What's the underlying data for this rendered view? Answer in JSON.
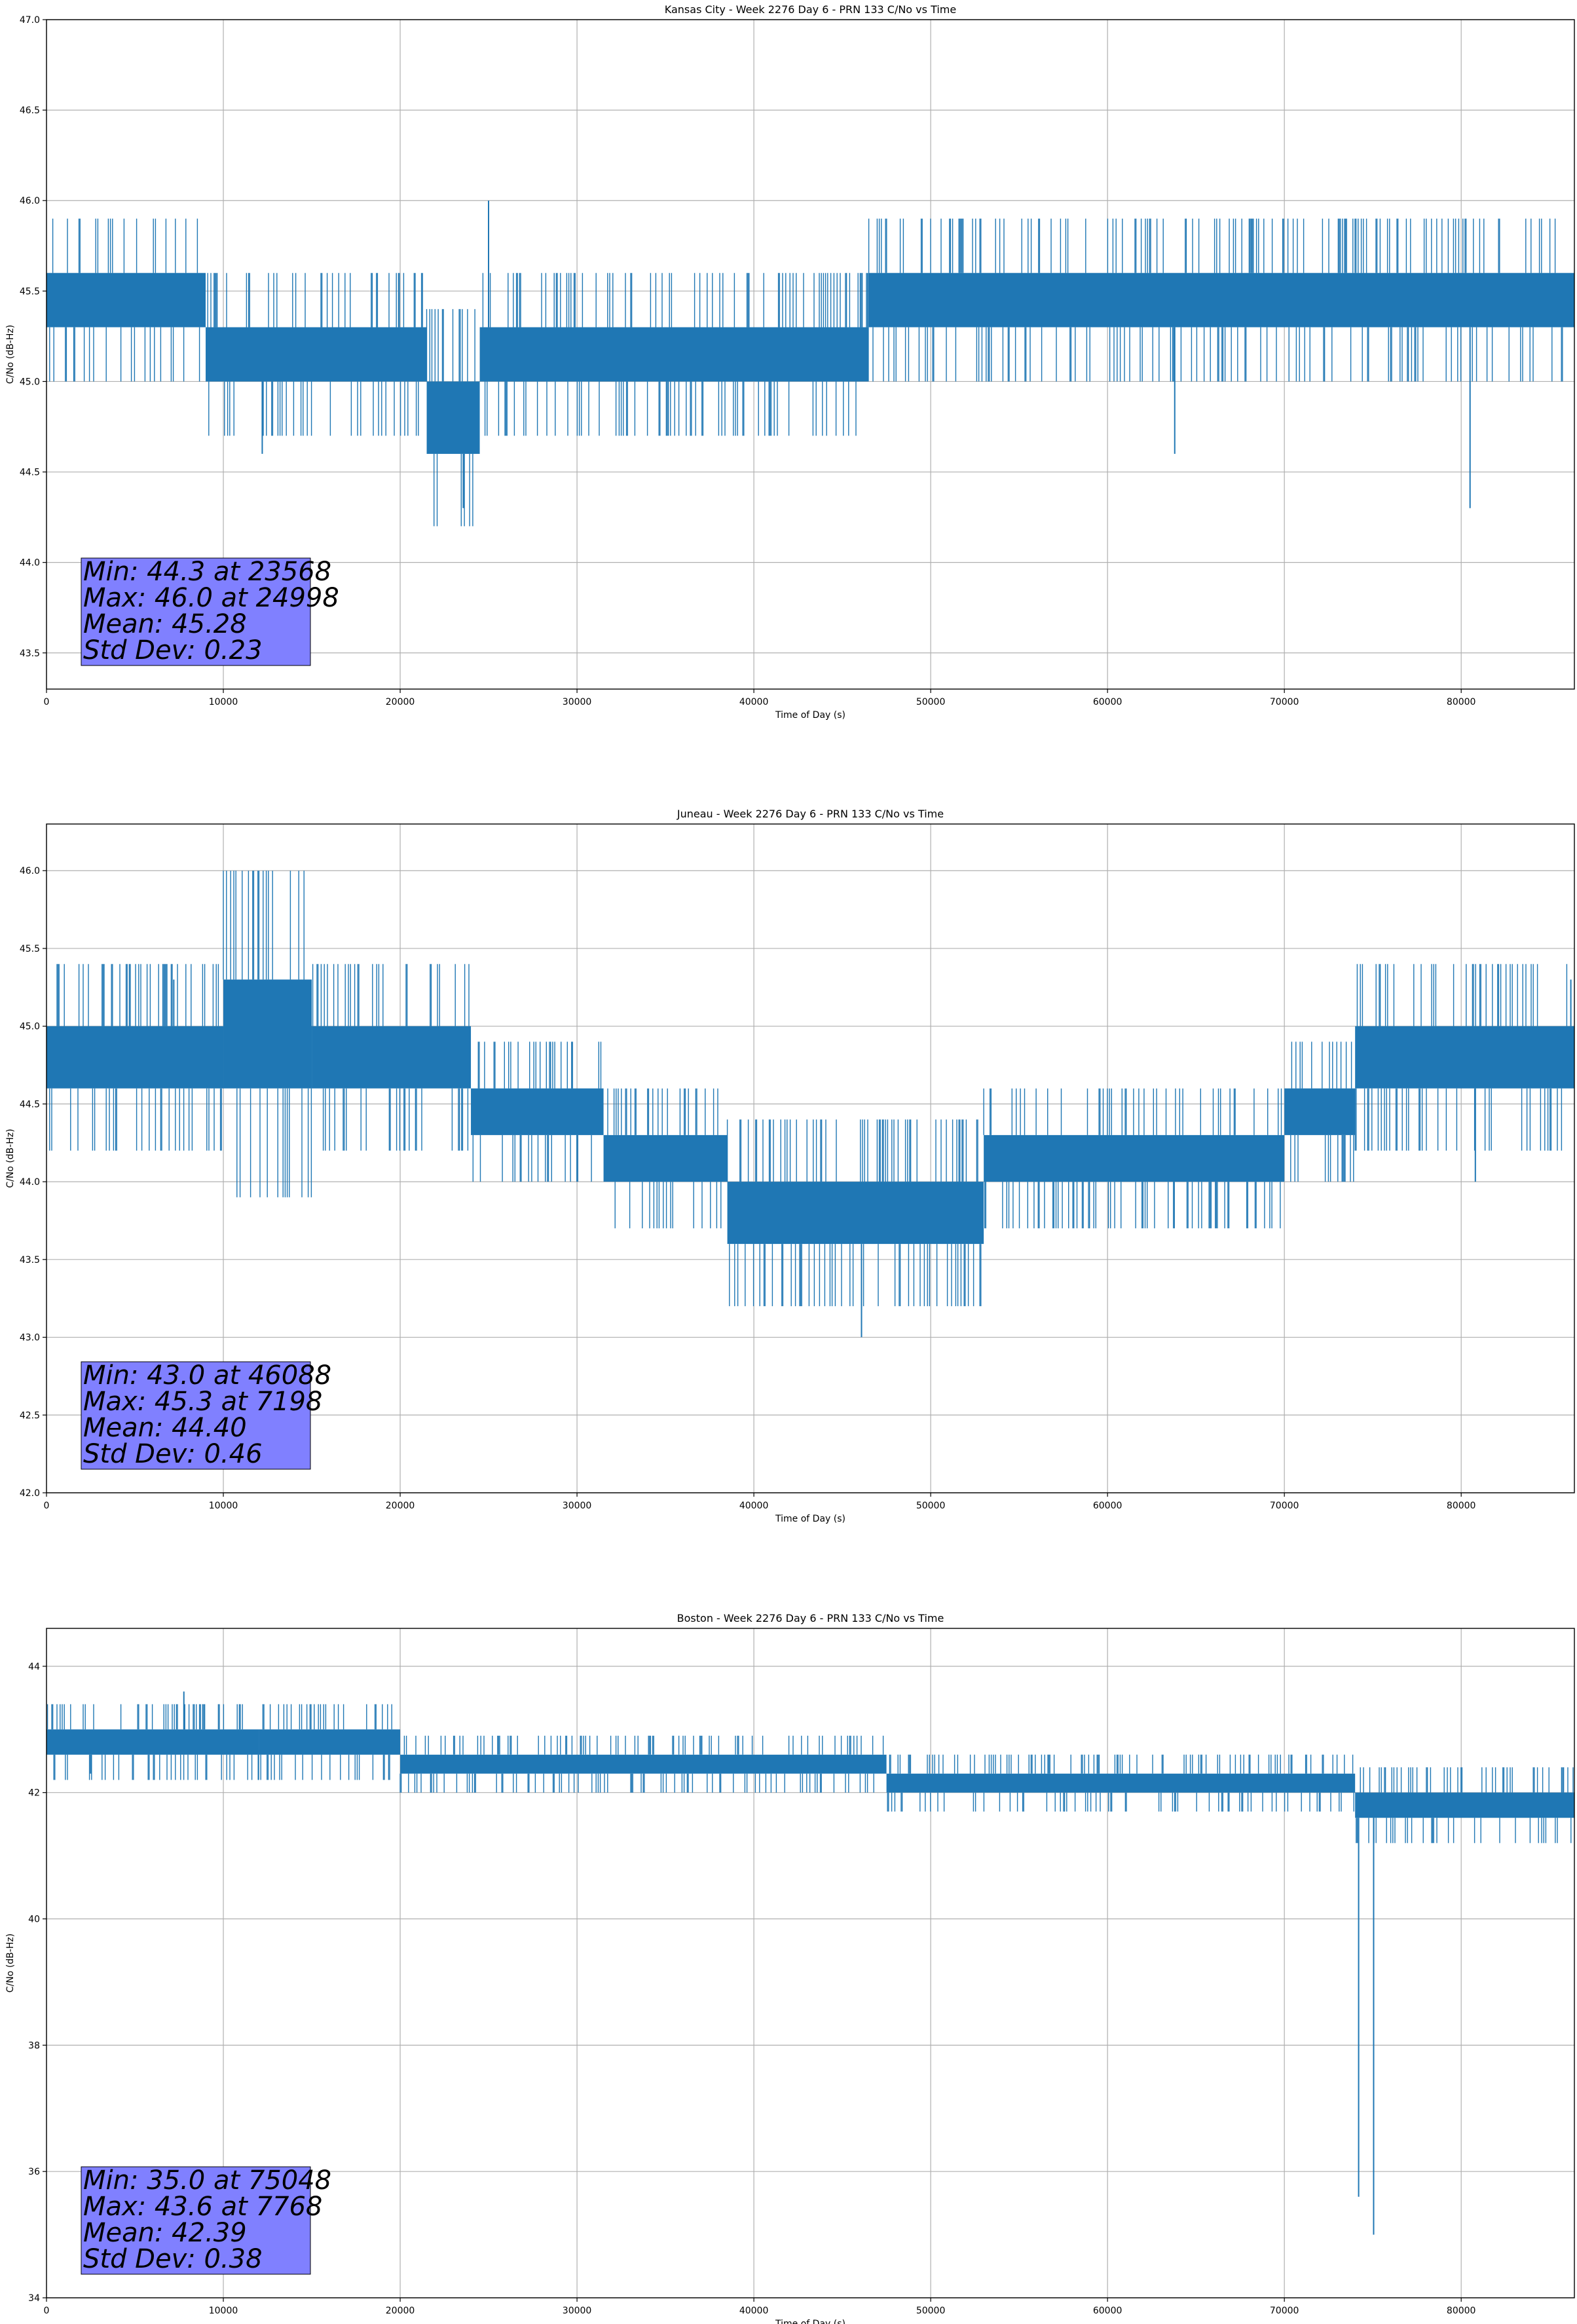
{
  "colors": {
    "series": "#1f77b4",
    "grid": "#b0b0b0",
    "stats_box_fill": "#8080ff",
    "stats_box_edge": "#000000"
  },
  "chart_data": [
    {
      "type": "line",
      "title": "Kansas City - Week 2276 Day 6 - PRN 133 C/No vs Time",
      "xlabel": "Time of Day (s)",
      "ylabel": "C/No (dB-Hz)",
      "xlim": [
        0,
        86400
      ],
      "ylim": [
        43.3,
        47.0
      ],
      "xticks": [
        0,
        10000,
        20000,
        30000,
        40000,
        50000,
        60000,
        70000,
        80000
      ],
      "xtick_labels": [
        "0",
        "10000",
        "20000",
        "30000",
        "40000",
        "50000",
        "60000",
        "70000",
        "80000"
      ],
      "yticks": [
        43.5,
        44.0,
        44.5,
        45.0,
        45.5,
        46.0,
        46.5,
        47.0
      ],
      "ytick_labels": [
        "43.5",
        "44.0",
        "44.5",
        "45.0",
        "45.5",
        "46.0",
        "46.5",
        "47.0"
      ],
      "grid": true,
      "series": [
        {
          "description_note": "dense noisy C/No trace quantized to 0.3 dB steps",
          "band_segments": [
            {
              "x": [
                0,
                9000
              ],
              "low": 45.3,
              "high": 45.6
            },
            {
              "x": [
                9000,
                21500
              ],
              "low": 45.0,
              "high": 45.3
            },
            {
              "x": [
                21500,
                24500
              ],
              "low": 44.6,
              "high": 45.0
            },
            {
              "x": [
                24500,
                46500
              ],
              "low": 45.0,
              "high": 45.3
            },
            {
              "x": [
                46500,
                86400
              ],
              "low": 45.3,
              "high": 45.6
            }
          ],
          "extremes": [
            {
              "x": 23568,
              "y": 44.3
            },
            {
              "x": 24998,
              "y": 46.0
            },
            {
              "x": 80500,
              "y": 44.3
            },
            {
              "x": 12200,
              "y": 44.6
            },
            {
              "x": 63800,
              "y": 44.6
            }
          ]
        }
      ],
      "stats_lines": [
        "Min: 44.3 at 23568",
        "Max: 46.0 at 24998",
        "Mean: 45.28",
        "Std Dev: 0.23"
      ]
    },
    {
      "type": "line",
      "title": "Juneau - Week 2276 Day 6 - PRN 133 C/No vs Time",
      "xlabel": "Time of Day (s)",
      "ylabel": "C/No (dB-Hz)",
      "xlim": [
        0,
        86400
      ],
      "ylim": [
        42.0,
        46.3
      ],
      "xticks": [
        0,
        10000,
        20000,
        30000,
        40000,
        50000,
        60000,
        70000,
        80000
      ],
      "xtick_labels": [
        "0",
        "10000",
        "20000",
        "30000",
        "40000",
        "50000",
        "60000",
        "70000",
        "80000"
      ],
      "yticks": [
        42.0,
        42.5,
        43.0,
        43.5,
        44.0,
        44.5,
        45.0,
        45.5,
        46.0
      ],
      "ytick_labels": [
        "42.0",
        "42.5",
        "43.0",
        "43.5",
        "44.0",
        "44.5",
        "45.0",
        "45.5",
        "46.0"
      ],
      "grid": true,
      "series": [
        {
          "band_segments": [
            {
              "x": [
                0,
                10000
              ],
              "low": 44.6,
              "high": 45.0
            },
            {
              "x": [
                10000,
                15000
              ],
              "low": 44.6,
              "high": 45.3
            },
            {
              "x": [
                15000,
                24000
              ],
              "low": 44.6,
              "high": 45.0
            },
            {
              "x": [
                24000,
                31500
              ],
              "low": 44.3,
              "high": 44.6
            },
            {
              "x": [
                31500,
                38500
              ],
              "low": 44.0,
              "high": 44.3
            },
            {
              "x": [
                38500,
                53000
              ],
              "low": 43.6,
              "high": 44.0
            },
            {
              "x": [
                53000,
                70000
              ],
              "low": 44.0,
              "high": 44.3
            },
            {
              "x": [
                70000,
                74000
              ],
              "low": 44.3,
              "high": 44.6
            },
            {
              "x": [
                74000,
                86400
              ],
              "low": 44.6,
              "high": 45.0
            }
          ],
          "extremes": [
            {
              "x": 46088,
              "y": 43.0
            },
            {
              "x": 7198,
              "y": 45.3
            },
            {
              "x": 86200,
              "y": 45.3
            },
            {
              "x": 80800,
              "y": 44.0
            }
          ]
        }
      ],
      "stats_lines": [
        "Min: 43.0 at 46088",
        "Max: 45.3 at 7198",
        "Mean: 44.40",
        "Std Dev: 0.46"
      ]
    },
    {
      "type": "line",
      "title": "Boston - Week 2276 Day 6 - PRN 133 C/No vs Time",
      "xlabel": "Time of Day (s)",
      "ylabel": "C/No (dB-Hz)",
      "xlim": [
        0,
        86400
      ],
      "ylim": [
        34.0,
        44.6
      ],
      "xticks": [
        0,
        10000,
        20000,
        30000,
        40000,
        50000,
        60000,
        70000,
        80000
      ],
      "xtick_labels": [
        "0",
        "10000",
        "20000",
        "30000",
        "40000",
        "50000",
        "60000",
        "70000",
        "80000"
      ],
      "yticks": [
        34,
        36,
        38,
        40,
        42,
        44
      ],
      "ytick_labels": [
        "34",
        "36",
        "38",
        "40",
        "42",
        "44"
      ],
      "grid": true,
      "series": [
        {
          "band_segments": [
            {
              "x": [
                0,
                12000
              ],
              "low": 42.6,
              "high": 43.0
            },
            {
              "x": [
                12000,
                20000
              ],
              "low": 42.6,
              "high": 43.0
            },
            {
              "x": [
                20000,
                47500
              ],
              "low": 42.3,
              "high": 42.6
            },
            {
              "x": [
                47500,
                74000
              ],
              "low": 42.0,
              "high": 42.3
            },
            {
              "x": [
                74000,
                86400
              ],
              "low": 41.6,
              "high": 42.0
            }
          ],
          "extremes": [
            {
              "x": 75048,
              "y": 35.0
            },
            {
              "x": 74200,
              "y": 35.6
            },
            {
              "x": 7768,
              "y": 43.6
            },
            {
              "x": 2500,
              "y": 42.3
            }
          ]
        }
      ],
      "stats_lines": [
        "Min: 35.0 at 75048",
        "Max: 43.6 at 7768",
        "Mean: 42.39",
        "Std Dev: 0.38"
      ]
    }
  ]
}
